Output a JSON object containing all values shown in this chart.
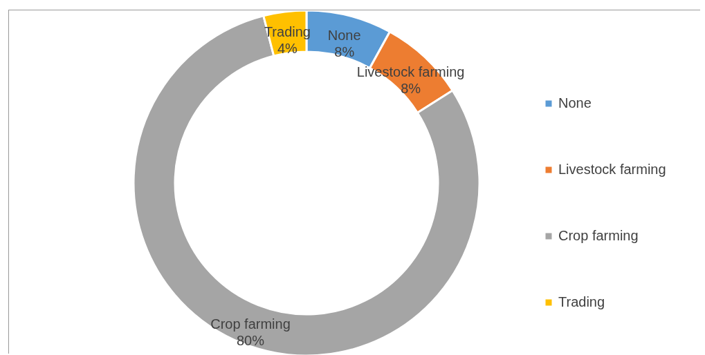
{
  "chart_data": {
    "type": "donut",
    "categories": [
      "None",
      "Livestock farming",
      "Crop farming",
      "Trading"
    ],
    "values": [
      8,
      8,
      80,
      4
    ],
    "colors": [
      "#5b9bd5",
      "#ed7d31",
      "#a5a5a5",
      "#ffc000"
    ],
    "value_labels": [
      "8%",
      "8%",
      "80%",
      "4%"
    ],
    "legend": "right"
  }
}
